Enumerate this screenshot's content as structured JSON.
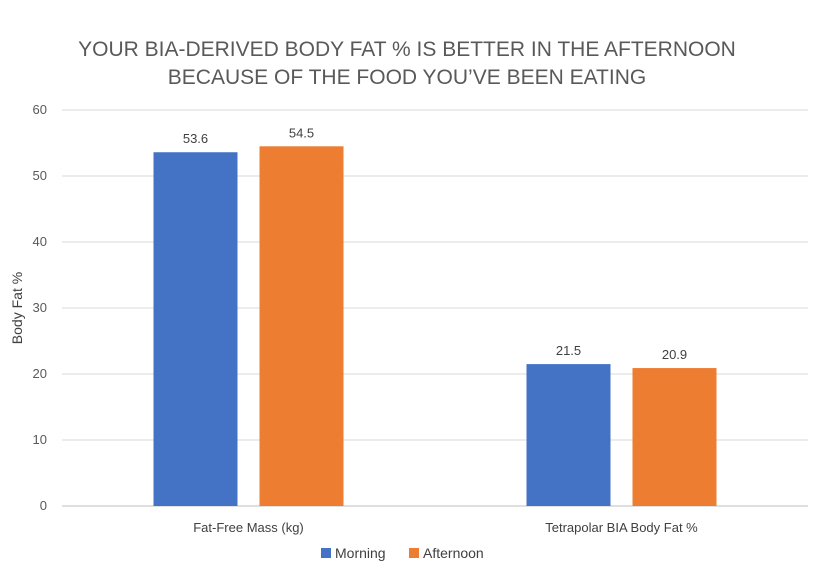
{
  "chart_data": {
    "type": "bar",
    "title_lines": [
      "YOUR BIA-DERIVED BODY FAT % IS BETTER IN THE AFTERNOON",
      "BECAUSE OF THE FOOD YOU’VE BEEN EATING"
    ],
    "xlabel": "",
    "ylabel": "Body Fat %",
    "ylim": [
      0,
      60
    ],
    "yticks": [
      0,
      10,
      20,
      30,
      40,
      50,
      60
    ],
    "categories": [
      "Fat-Free Mass (kg)",
      "Tetrapolar BIA Body Fat %"
    ],
    "series": [
      {
        "name": "Morning",
        "color": "#4472c4",
        "values": [
          53.6,
          21.5
        ],
        "labels": [
          "53.6",
          "21.5"
        ]
      },
      {
        "name": "Afternoon",
        "color": "#ed7d31",
        "values": [
          54.5,
          20.9
        ],
        "labels": [
          "54.5",
          "20.9"
        ]
      }
    ],
    "grid": true,
    "legend_position": "bottom"
  }
}
